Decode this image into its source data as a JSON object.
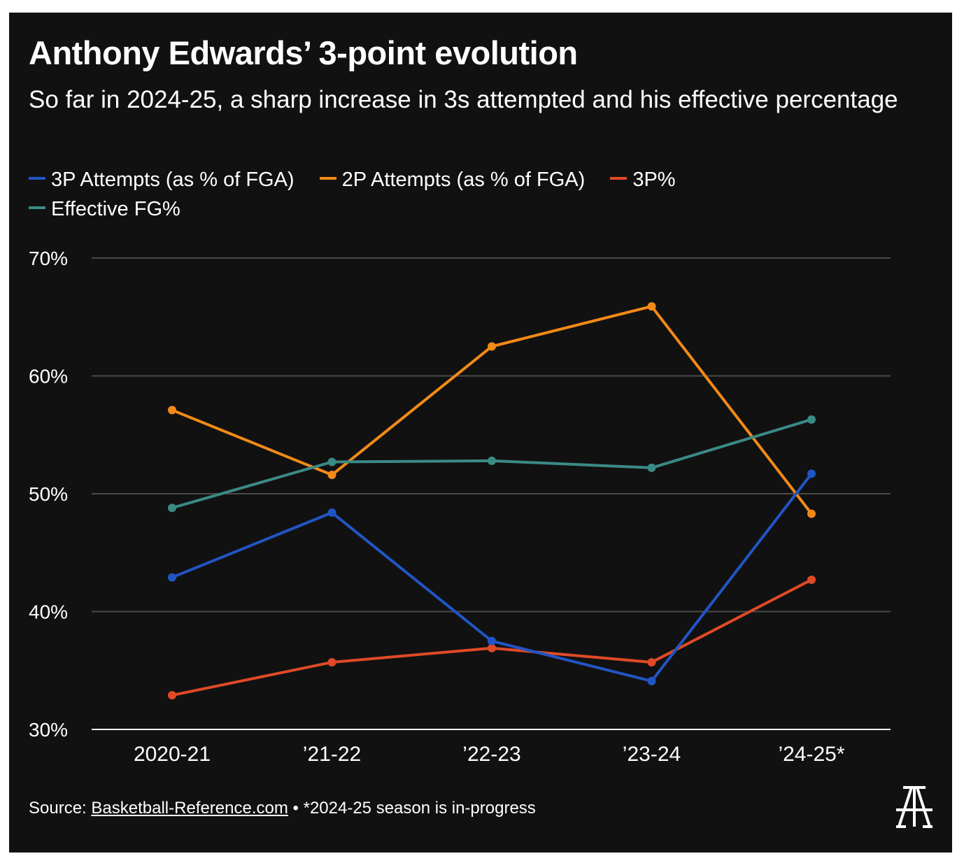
{
  "title": "Anthony Edwards’ 3-point evolution",
  "subtitle": "So far in 2024-25, a sharp increase in 3s attempted and his effective percentage",
  "footer": {
    "source_label": "Source:",
    "source_link": "Basketball-Reference.com",
    "bullet": "•",
    "note": "*2024-25 season is in-progress"
  },
  "logo_icon": "athletic-a-logo-icon",
  "colors": {
    "background": "#111111",
    "grid": "#4a4a4a",
    "axis": "#ffffff"
  },
  "chart_data": {
    "type": "line",
    "title": "Anthony Edwards’ 3-point evolution",
    "xlabel": "",
    "ylabel": "",
    "categories": [
      "2020-21",
      "’21-22",
      "’22-23",
      "’23-24",
      "’24-25*"
    ],
    "ylim": [
      30,
      70
    ],
    "yticks": [
      30,
      40,
      50,
      60,
      70
    ],
    "ytick_labels": [
      "30%",
      "40%",
      "50%",
      "60%",
      "70%"
    ],
    "grid": true,
    "legend_position": "top-left",
    "series": [
      {
        "name": "3P Attempts (as % of FGA)",
        "color": "#2255c4",
        "values": [
          42.9,
          48.4,
          37.5,
          34.1,
          51.7
        ]
      },
      {
        "name": "2P Attempts (as % of FGA)",
        "color": "#f28a17",
        "values": [
          57.1,
          51.6,
          62.5,
          65.9,
          48.3
        ]
      },
      {
        "name": "3P%",
        "color": "#e04a26",
        "values": [
          32.9,
          35.7,
          36.9,
          35.7,
          42.7
        ]
      },
      {
        "name": "Effective FG%",
        "color": "#3b8a86",
        "values": [
          48.8,
          52.7,
          52.8,
          52.2,
          56.3
        ]
      }
    ]
  }
}
